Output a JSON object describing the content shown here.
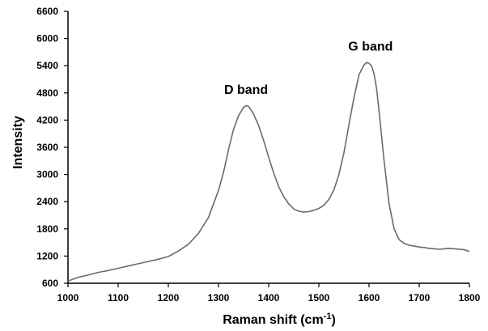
{
  "chart_data": {
    "type": "line",
    "title": "",
    "xlabel": "Raman shift (cm",
    "xlabel_sup": "-1",
    "xlabel_close": ")",
    "ylabel": "Intensity",
    "xlim": [
      1000,
      1800
    ],
    "ylim": [
      600,
      6600
    ],
    "xticks": [
      "1000",
      "1100",
      "1200",
      "1300",
      "1400",
      "1500",
      "1600",
      "1700",
      "1800"
    ],
    "yticks": [
      "600",
      "1200",
      "1800",
      "2400",
      "3000",
      "3600",
      "4200",
      "4800",
      "5400",
      "6000",
      "6600"
    ],
    "grid": false,
    "line_color": "#6b6b6b",
    "annotations": [
      {
        "text": "D band",
        "x": 1355,
        "y": 4780
      },
      {
        "text": "G band",
        "x": 1603,
        "y": 5730
      }
    ],
    "series": [
      {
        "x": [
          1000,
          1020,
          1040,
          1060,
          1080,
          1100,
          1120,
          1140,
          1160,
          1180,
          1200,
          1220,
          1240,
          1260,
          1280,
          1300,
          1310,
          1320,
          1330,
          1340,
          1350,
          1355,
          1360,
          1365,
          1370,
          1380,
          1390,
          1400,
          1410,
          1420,
          1430,
          1440,
          1450,
          1460,
          1470,
          1480,
          1490,
          1500,
          1510,
          1520,
          1530,
          1540,
          1550,
          1560,
          1570,
          1580,
          1590,
          1595,
          1600,
          1605,
          1610,
          1615,
          1620,
          1630,
          1640,
          1650,
          1660,
          1670,
          1680,
          1690,
          1700,
          1710,
          1720,
          1730,
          1740,
          1750,
          1760,
          1770,
          1780,
          1790,
          1800
        ],
        "values": [
          650,
          730,
          780,
          840,
          880,
          930,
          980,
          1030,
          1080,
          1130,
          1190,
          1310,
          1460,
          1700,
          2050,
          2650,
          3050,
          3550,
          4000,
          4300,
          4480,
          4520,
          4500,
          4420,
          4330,
          4080,
          3750,
          3380,
          3030,
          2730,
          2510,
          2350,
          2240,
          2190,
          2170,
          2180,
          2210,
          2250,
          2320,
          2450,
          2660,
          3000,
          3480,
          4100,
          4700,
          5200,
          5420,
          5470,
          5450,
          5400,
          5220,
          4900,
          4400,
          3300,
          2350,
          1800,
          1560,
          1480,
          1440,
          1420,
          1400,
          1390,
          1370,
          1360,
          1350,
          1360,
          1370,
          1360,
          1350,
          1340,
          1300
        ]
      }
    ]
  }
}
